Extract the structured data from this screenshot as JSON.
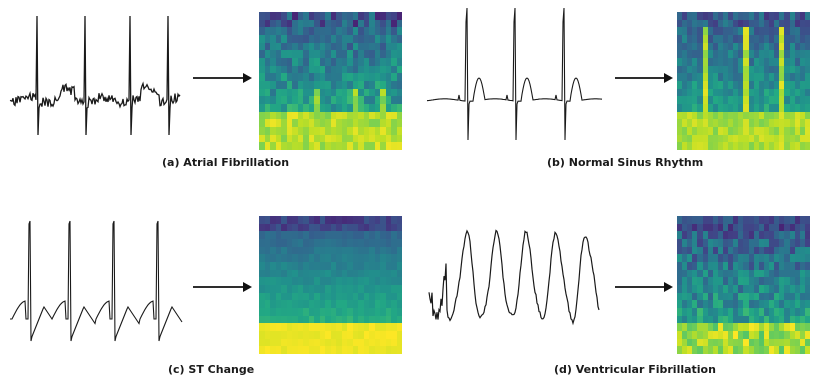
{
  "panels": [
    {
      "id": "a",
      "caption": "(a) Atrial Fibrillation",
      "waveform": "afib",
      "heatmap_style": "afib"
    },
    {
      "id": "b",
      "caption": "(b) Normal Sinus Rhythm",
      "waveform": "nsr",
      "heatmap_style": "nsr"
    },
    {
      "id": "c",
      "caption": "(c) ST Change",
      "waveform": "st",
      "heatmap_style": "st"
    },
    {
      "id": "d",
      "caption": "(d) Ventricular Fibrillation",
      "waveform": "vfib",
      "heatmap_style": "vfib"
    }
  ],
  "colors": {
    "signal": "#1a1a1a",
    "arrow": "#111111",
    "viridis_dark": "#3b1f6e",
    "viridis_mid": "#2a8a8a",
    "viridis_light": "#e8e63a"
  }
}
